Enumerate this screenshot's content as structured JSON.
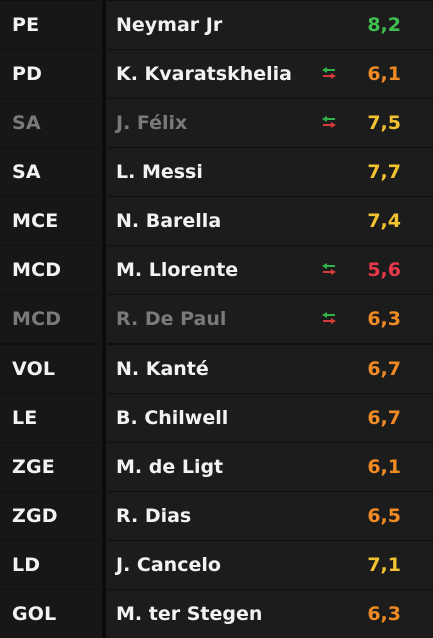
{
  "colors": {
    "rating_green": "#3fbf4f",
    "rating_yellow": "#f2c230",
    "rating_orange": "#f08a24",
    "rating_red": "#e8384a",
    "sub_icon_green": "#2fb34a",
    "sub_icon_red": "#d83a3a"
  },
  "players": [
    {
      "position": "PE",
      "name": "Neymar Jr",
      "rating": "8,2",
      "rating_color": "green",
      "substituted": false,
      "dim": false
    },
    {
      "position": "PD",
      "name": "K. Kvaratskhelia",
      "rating": "6,1",
      "rating_color": "orange",
      "substituted": true,
      "dim": false
    },
    {
      "position": "SA",
      "name": "J. Félix",
      "rating": "7,5",
      "rating_color": "yellow",
      "substituted": true,
      "dim": true
    },
    {
      "position": "SA",
      "name": "L. Messi",
      "rating": "7,7",
      "rating_color": "yellow",
      "substituted": false,
      "dim": false
    },
    {
      "position": "MCE",
      "name": "N. Barella",
      "rating": "7,4",
      "rating_color": "yellow",
      "substituted": false,
      "dim": false
    },
    {
      "position": "MCD",
      "name": "M. Llorente",
      "rating": "5,6",
      "rating_color": "red",
      "substituted": true,
      "dim": false
    },
    {
      "position": "MCD",
      "name": "R. De Paul",
      "rating": "6,3",
      "rating_color": "orange",
      "substituted": true,
      "dim": true
    },
    {
      "position": "VOL",
      "name": "N. Kanté",
      "rating": "6,7",
      "rating_color": "orange",
      "substituted": false,
      "dim": false
    },
    {
      "position": "LE",
      "name": "B. Chilwell",
      "rating": "6,7",
      "rating_color": "orange",
      "substituted": false,
      "dim": false
    },
    {
      "position": "ZGE",
      "name": "M. de Ligt",
      "rating": "6,1",
      "rating_color": "orange",
      "substituted": false,
      "dim": false
    },
    {
      "position": "ZGD",
      "name": "R. Dias",
      "rating": "6,5",
      "rating_color": "orange",
      "substituted": false,
      "dim": false
    },
    {
      "position": "LD",
      "name": "J. Cancelo",
      "rating": "7,1",
      "rating_color": "yellow",
      "substituted": false,
      "dim": false
    },
    {
      "position": "GOL",
      "name": "M. ter Stegen",
      "rating": "6,3",
      "rating_color": "orange",
      "substituted": false,
      "dim": false
    }
  ],
  "icons": {
    "substitution": "substitution-arrows-icon"
  }
}
